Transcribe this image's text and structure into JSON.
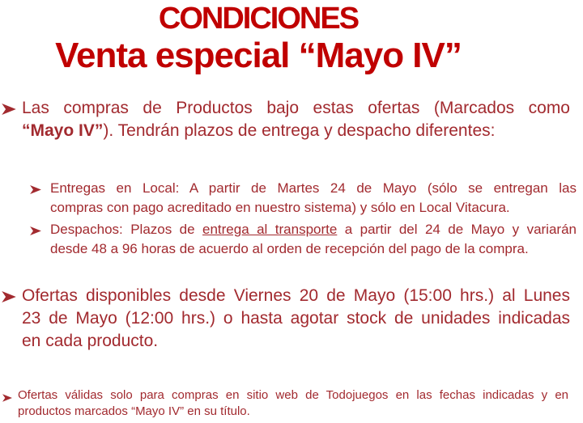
{
  "colors": {
    "title_red": "#c00000",
    "body_red": "#a22a2f",
    "background": "#ffffff"
  },
  "title": {
    "line1": "CONDICIONES",
    "line2": "Venta especial “Mayo IV”"
  },
  "bullets": [
    {
      "level": 1,
      "icon": "arrow-bullet-icon",
      "lines": [
        {
          "justify": true,
          "segments": [
            {
              "text": "Las compras de Productos bajo estas ofertas (Marcados como"
            }
          ]
        },
        {
          "justify": false,
          "segments": [
            {
              "text": "“Mayo IV”",
              "bold": true
            },
            {
              "text": "). Tendrán plazos de entrega y despacho diferentes:"
            }
          ]
        }
      ]
    },
    {
      "level": 2,
      "icon": "arrow-bullet-icon",
      "lines": [
        {
          "justify": true,
          "segments": [
            {
              "text": "Entregas en Local: A partir de Martes 24 de Mayo (sólo se entregan las"
            }
          ]
        },
        {
          "justify": false,
          "segments": [
            {
              "text": "compras con pago acreditado en nuestro sistema) y sólo en Local Vitacura."
            }
          ]
        }
      ]
    },
    {
      "level": 2,
      "icon": "arrow-bullet-icon",
      "lines": [
        {
          "justify": true,
          "segments": [
            {
              "text": "Despachos: Plazos de "
            },
            {
              "text": "entrega al transporte",
              "underline": true
            },
            {
              "text": " a partir del 24 de Mayo y variarán"
            }
          ]
        },
        {
          "justify": false,
          "segments": [
            {
              "text": "desde 48 a 96 horas de acuerdo al orden de recepción del pago de la compra."
            }
          ]
        }
      ]
    },
    {
      "level": 1,
      "icon": "arrow-bullet-icon",
      "lines": [
        {
          "justify": true,
          "segments": [
            {
              "text": "Ofertas disponibles desde Viernes 20 de Mayo (15:00 hrs.) al Lunes"
            }
          ]
        },
        {
          "justify": true,
          "segments": [
            {
              "text": "23 de Mayo (12:00 hrs.) o hasta agotar stock de unidades indicadas"
            }
          ]
        },
        {
          "justify": false,
          "segments": [
            {
              "text": "en cada producto."
            }
          ]
        }
      ]
    },
    {
      "level": 3,
      "icon": "arrow-bullet-icon",
      "lines": [
        {
          "justify": true,
          "segments": [
            {
              "text": "Ofertas válidas solo para compras en sitio web de Todojuegos en las fechas indicadas y en"
            }
          ]
        },
        {
          "justify": false,
          "segments": [
            {
              "text": "productos marcados “Mayo IV” en su título."
            }
          ]
        }
      ]
    }
  ]
}
